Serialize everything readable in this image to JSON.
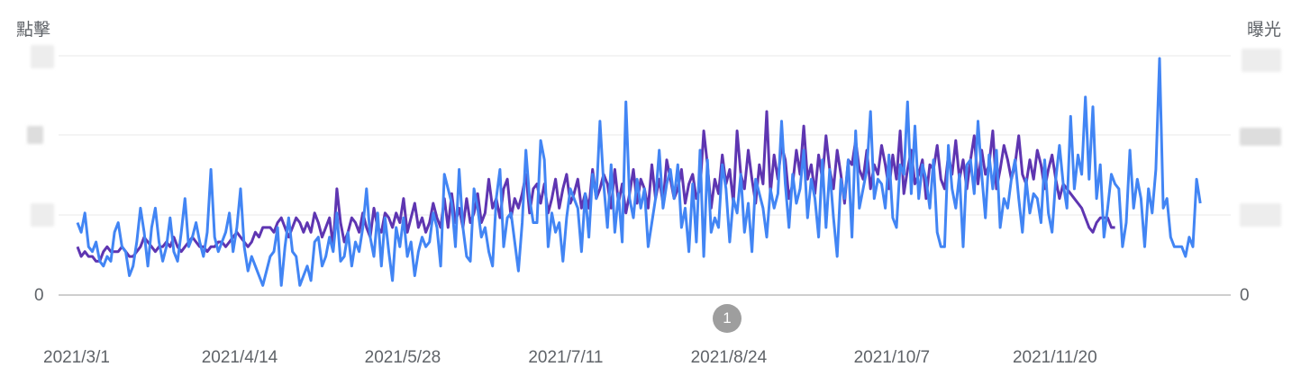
{
  "chart_data": {
    "type": "line",
    "left_axis_title": "點擊",
    "right_axis_title": "曝光",
    "left_zero_label": "0",
    "right_zero_label": "0",
    "x_start": "2021-03-01",
    "x_end": "2022-01-01",
    "x_tick_labels": [
      "2021/3/1",
      "2021/4/14",
      "2021/5/28",
      "2021/7/11",
      "2021/8/24",
      "2021/10/7",
      "2021/11/20"
    ],
    "grid": true,
    "annotation": {
      "label": "1",
      "date": "2021-08-27"
    },
    "series": [
      {
        "name": "",
        "color": "#5e35b1",
        "axis": "left",
        "values": [
          10,
          8,
          9,
          8,
          8,
          7,
          7,
          9,
          10,
          9,
          9,
          9,
          10,
          9,
          8,
          8,
          9,
          10,
          12,
          11,
          10,
          9,
          10,
          10,
          11,
          10,
          12,
          10,
          9,
          10,
          11,
          12,
          11,
          10,
          10,
          9,
          10,
          10,
          11,
          11,
          10,
          11,
          12,
          13,
          12,
          11,
          10,
          11,
          13,
          12,
          14,
          14,
          14,
          13,
          15,
          16,
          14,
          12,
          14,
          16,
          15,
          13,
          15,
          13,
          17,
          15,
          12,
          14,
          16,
          10,
          22,
          15,
          11,
          13,
          16,
          15,
          13,
          17,
          14,
          12,
          18,
          14,
          13,
          17,
          16,
          14,
          17,
          15,
          20,
          13,
          16,
          19,
          14,
          16,
          13,
          15,
          19,
          16,
          14,
          20,
          14,
          21,
          15,
          18,
          14,
          20,
          15,
          17,
          21,
          15,
          17,
          24,
          18,
          20,
          16,
          22,
          24,
          16,
          20,
          18,
          21,
          25,
          17,
          22,
          23,
          19,
          23,
          17,
          20,
          24,
          18,
          22,
          25,
          19,
          21,
          24,
          18,
          21,
          18,
          26,
          20,
          22,
          25,
          23,
          18,
          26,
          19,
          23,
          17,
          21,
          26,
          19,
          24,
          22,
          18,
          27,
          20,
          24,
          19,
          28,
          24,
          20,
          22,
          26,
          19,
          23,
          25,
          20,
          22,
          34,
          27,
          18,
          24,
          21,
          29,
          23,
          26,
          19,
          34,
          25,
          22,
          30,
          24,
          19,
          27,
          23,
          38,
          21,
          29,
          24,
          31,
          28,
          20,
          23,
          30,
          25,
          35,
          24,
          27,
          21,
          29,
          24,
          33,
          26,
          22,
          30,
          25,
          19,
          28,
          27,
          32,
          26,
          24,
          30,
          22,
          27,
          25,
          31,
          27,
          22,
          29,
          24,
          34,
          21,
          26,
          30,
          23,
          25,
          28,
          20,
          27,
          26,
          31,
          24,
          22,
          29,
          25,
          32,
          24,
          28,
          22,
          28,
          33,
          23,
          30,
          25,
          27,
          34,
          22,
          26,
          31,
          28,
          24,
          27,
          33,
          25,
          23,
          28,
          24,
          30,
          27,
          22,
          26,
          29,
          24,
          20,
          23,
          22,
          21,
          20,
          19,
          18,
          16,
          14,
          13,
          15,
          16,
          16,
          16,
          14,
          14
        ]
      },
      {
        "name": "",
        "color": "#4285f4",
        "axis": "right",
        "values": [
          15,
          13,
          17,
          10,
          9,
          11,
          7,
          6,
          8,
          7,
          13,
          15,
          10,
          9,
          4,
          6,
          11,
          18,
          13,
          6,
          14,
          18,
          11,
          7,
          10,
          16,
          9,
          7,
          13,
          20,
          10,
          12,
          15,
          11,
          8,
          13,
          26,
          12,
          9,
          11,
          13,
          17,
          9,
          14,
          22,
          10,
          5,
          8,
          6,
          4,
          2,
          5,
          8,
          9,
          14,
          2,
          10,
          16,
          9,
          8,
          2,
          4,
          6,
          3,
          11,
          12,
          6,
          8,
          12,
          9,
          17,
          7,
          8,
          13,
          6,
          11,
          9,
          14,
          22,
          12,
          8,
          17,
          6,
          16,
          9,
          3,
          14,
          10,
          16,
          8,
          11,
          4,
          9,
          12,
          10,
          11,
          17,
          14,
          6,
          25,
          22,
          19,
          10,
          26,
          14,
          8,
          7,
          22,
          18,
          12,
          14,
          9,
          6,
          20,
          26,
          10,
          16,
          17,
          11,
          5,
          15,
          30,
          20,
          15,
          15,
          32,
          28,
          10,
          17,
          13,
          15,
          7,
          16,
          22,
          20,
          18,
          9,
          21,
          12,
          25,
          20,
          36,
          23,
          14,
          27,
          13,
          21,
          11,
          40,
          20,
          16,
          24,
          18,
          22,
          10,
          15,
          20,
          30,
          18,
          23,
          26,
          20,
          27,
          14,
          18,
          9,
          23,
          11,
          30,
          8,
          28,
          13,
          16,
          14,
          27,
          22,
          11,
          20,
          17,
          25,
          13,
          19,
          9,
          24,
          21,
          18,
          12,
          22,
          18,
          21,
          36,
          23,
          14,
          25,
          19,
          22,
          30,
          16,
          24,
          20,
          12,
          28,
          14,
          26,
          16,
          8,
          24,
          20,
          28,
          12,
          34,
          18,
          22,
          26,
          38,
          20,
          24,
          23,
          18,
          29,
          16,
          14,
          27,
          25,
          40,
          21,
          35,
          20,
          27,
          24,
          18,
          28,
          13,
          10,
          10,
          31,
          22,
          18,
          25,
          10,
          27,
          28,
          21,
          36,
          25,
          16,
          29,
          22,
          30,
          14,
          20,
          18,
          24,
          28,
          20,
          13,
          24,
          17,
          21,
          20,
          15,
          28,
          17,
          13,
          24,
          31,
          23,
          18,
          37,
          22,
          29,
          25,
          41,
          24,
          39,
          20,
          27,
          12,
          18,
          25,
          23,
          22,
          10,
          15,
          30,
          18,
          24,
          20,
          10,
          22,
          17,
          26,
          49,
          18,
          20,
          12,
          10,
          10,
          10,
          8,
          12,
          10,
          24,
          19
        ]
      }
    ]
  }
}
